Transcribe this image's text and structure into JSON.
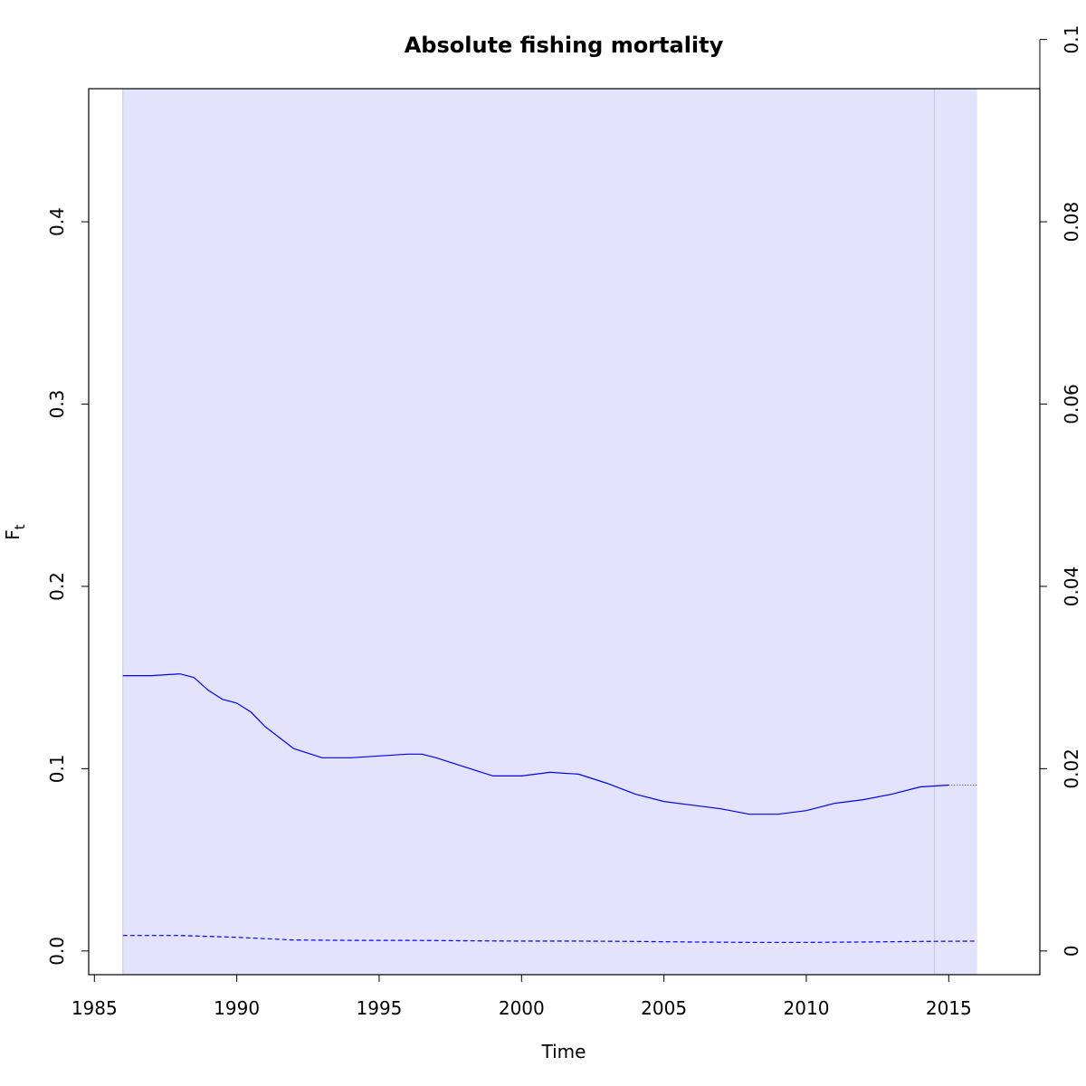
{
  "chart_data": {
    "type": "line",
    "title": "Absolute fishing mortality",
    "xlabel": "Time",
    "ylabel_main": "F",
    "ylabel_sub": "t",
    "xlim": [
      1984.8,
      2018.2
    ],
    "ylim": [
      -0.013,
      0.473
    ],
    "x_ticks": [
      1985,
      1990,
      1995,
      2000,
      2005,
      2010,
      2015
    ],
    "y_ticks": [
      0.0,
      0.1,
      0.2,
      0.3,
      0.4
    ],
    "y_tick_labels": [
      "0.0",
      "0.1",
      "0.2",
      "0.3",
      "0.4"
    ],
    "right_axis": {
      "ticks": [
        0,
        0.02,
        0.04,
        0.06,
        0.08,
        0.1
      ],
      "tick_labels": [
        "0",
        "0.02",
        "0.04",
        "0.06",
        "0.08",
        "0.1"
      ],
      "ylim": [
        -0.0026,
        0.0946
      ]
    },
    "grid": false,
    "colors": {
      "line": "#0000ff",
      "band": "#e3e3fd",
      "vline": "#c8c8d6"
    },
    "vertical_lines": [
      1986.0,
      2014.5
    ],
    "band": {
      "x_start": 1986.0,
      "x_end": 2016.0
    },
    "series": [
      {
        "style": "solid",
        "x": [
          1986.0,
          1987.0,
          1988.0,
          1988.5,
          1989.0,
          1989.5,
          1990.0,
          1990.5,
          1991.0,
          1992.0,
          1993.0,
          1994.0,
          1995.0,
          1996.0,
          1996.5,
          1997.0,
          1998.0,
          1999.0,
          2000.0,
          2001.0,
          2002.0,
          2003.0,
          2004.0,
          2005.0,
          2006.0,
          2007.0,
          2008.0,
          2009.0,
          2010.0,
          2011.0,
          2012.0,
          2013.0,
          2014.0,
          2015.0
        ],
        "y": [
          0.151,
          0.151,
          0.152,
          0.15,
          0.143,
          0.138,
          0.136,
          0.131,
          0.123,
          0.111,
          0.106,
          0.106,
          0.107,
          0.108,
          0.108,
          0.106,
          0.101,
          0.096,
          0.096,
          0.098,
          0.097,
          0.092,
          0.086,
          0.082,
          0.08,
          0.078,
          0.075,
          0.075,
          0.077,
          0.081,
          0.083,
          0.086,
          0.09,
          0.091
        ]
      },
      {
        "style": "dotted",
        "x": [
          2015.0,
          2016.0
        ],
        "y": [
          0.091,
          0.091
        ]
      },
      {
        "style": "dashed",
        "x": [
          1986.0,
          1988.0,
          1990.0,
          1992.0,
          1994.0,
          1996.0,
          1998.0,
          2000.0,
          2002.0,
          2004.0,
          2006.0,
          2008.0,
          2010.0,
          2012.0,
          2014.0,
          2016.0
        ],
        "y": [
          0.0085,
          0.0085,
          0.0075,
          0.006,
          0.0058,
          0.0058,
          0.0056,
          0.0054,
          0.0054,
          0.0052,
          0.0049,
          0.0047,
          0.0047,
          0.0049,
          0.0052,
          0.0054
        ]
      }
    ]
  }
}
